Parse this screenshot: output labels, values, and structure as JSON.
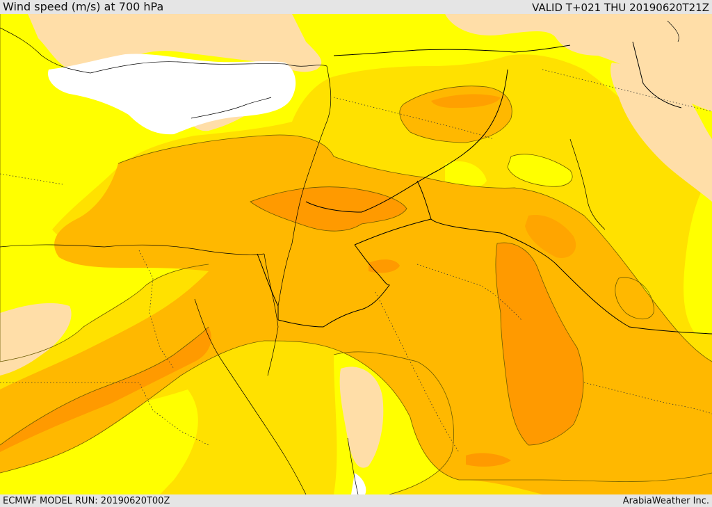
{
  "header": {
    "title": "Wind speed (m/s) at 700 hPa",
    "valid": "VALID T+021 THU  20190620T21Z"
  },
  "footer": {
    "model_run": "ECMWF MODEL RUN: 20190620T00Z",
    "credit": "ArabiaWeather Inc."
  },
  "colors": {
    "band_0_5": "#ffdea8",
    "band_5_10": "#ffff00",
    "band_10_15": "#ffe100",
    "band_15_20": "#ffb800",
    "band_20_25": "#ff9a00",
    "no_data": "#ffffff",
    "contour": "#6b5a00",
    "border": "#000000"
  }
}
